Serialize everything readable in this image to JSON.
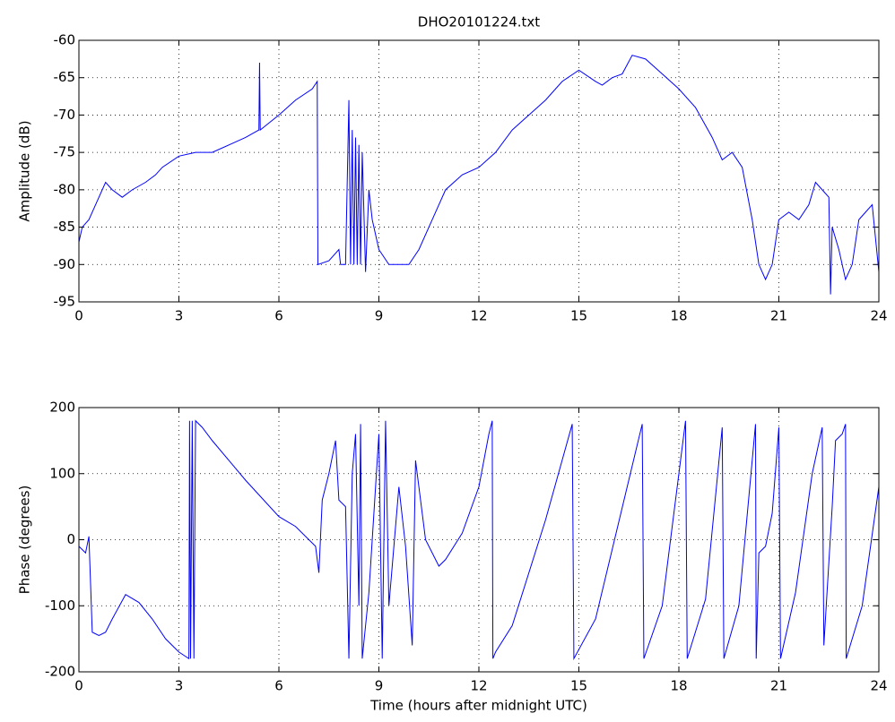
{
  "chart_data": [
    {
      "type": "line",
      "title": "DHO20101224.txt",
      "y_label": "Amplitude (dB)",
      "grid": true,
      "xlim": [
        0,
        24
      ],
      "xticks": [
        0,
        3,
        6,
        9,
        12,
        15,
        18,
        21,
        24
      ],
      "ylim": [
        -95,
        -60
      ],
      "yticks": [
        -95,
        -90,
        -85,
        -80,
        -75,
        -70,
        -65,
        -60
      ],
      "x": [
        0,
        0.1,
        0.3,
        0.5,
        0.8,
        1.0,
        1.3,
        1.6,
        2.0,
        2.3,
        2.5,
        3.0,
        3.5,
        4.0,
        4.5,
        5.0,
        5.4,
        5.42,
        5.44,
        6.0,
        6.5,
        7.0,
        7.15,
        7.17,
        7.5,
        7.8,
        7.85,
        8.0,
        8.1,
        8.15,
        8.2,
        8.25,
        8.3,
        8.35,
        8.4,
        8.45,
        8.5,
        8.6,
        8.7,
        8.8,
        9.0,
        9.3,
        9.6,
        9.9,
        10.2,
        10.5,
        10.8,
        11.0,
        11.5,
        12.0,
        12.5,
        13.0,
        13.5,
        14.0,
        14.5,
        15.0,
        15.5,
        15.7,
        16.0,
        16.3,
        16.6,
        17.0,
        17.5,
        18.0,
        18.5,
        19.0,
        19.3,
        19.6,
        19.9,
        20.2,
        20.4,
        20.6,
        20.8,
        21.0,
        21.3,
        21.6,
        21.9,
        22.1,
        22.3,
        22.5,
        22.55,
        22.6,
        22.8,
        23.0,
        23.2,
        23.4,
        23.6,
        23.8,
        24
      ],
      "series": [
        {
          "color": "#0000ff",
          "values": [
            -87,
            -85,
            -84,
            -82,
            -79,
            -80,
            -81,
            -80,
            -79,
            -78,
            -77,
            -75.5,
            -75,
            -75,
            -74,
            -73,
            -72,
            -63,
            -72,
            -70,
            -68,
            -66.5,
            -65.5,
            -90,
            -89.5,
            -88,
            -90,
            -90,
            -68,
            -90,
            -72,
            -90,
            -73,
            -90,
            -74,
            -90,
            -75,
            -91,
            -80,
            -84,
            -88,
            -90,
            -90,
            -90,
            -88,
            -85,
            -82,
            -80,
            -78,
            -77,
            -75,
            -72,
            -70,
            -68,
            -65.5,
            -64,
            -65.5,
            -66,
            -65,
            -64.5,
            -62,
            -62.5,
            -64.5,
            -66.5,
            -69,
            -73,
            -76,
            -75,
            -77,
            -84,
            -90,
            -92,
            -90,
            -84,
            -83,
            -84,
            -82,
            -79,
            -80,
            -81,
            -94,
            -85,
            -88,
            -92,
            -90,
            -84,
            -83,
            -82,
            -91
          ]
        }
      ]
    },
    {
      "type": "line",
      "x_label": "Time (hours after midnight UTC)",
      "y_label": "Phase (degrees)",
      "grid": true,
      "xlim": [
        0,
        24
      ],
      "xticks": [
        0,
        3,
        6,
        9,
        12,
        15,
        18,
        21,
        24
      ],
      "ylim": [
        -200,
        200
      ],
      "yticks": [
        -200,
        -100,
        0,
        100,
        200
      ],
      "x": [
        0,
        0.2,
        0.3,
        0.4,
        0.6,
        0.8,
        1.0,
        1.4,
        1.8,
        2.2,
        2.6,
        3.0,
        3.3,
        3.32,
        3.35,
        3.4,
        3.45,
        3.5,
        3.7,
        4.0,
        5.0,
        6.0,
        6.5,
        7.1,
        7.2,
        7.3,
        7.5,
        7.7,
        7.8,
        8.0,
        8.1,
        8.2,
        8.3,
        8.4,
        8.45,
        8.5,
        8.7,
        9.0,
        9.1,
        9.2,
        9.3,
        9.6,
        9.8,
        10.0,
        10.1,
        10.4,
        10.8,
        11.0,
        11.5,
        12.0,
        12.3,
        12.4,
        12.42,
        12.5,
        13.0,
        14.0,
        14.8,
        14.85,
        15.5,
        16.9,
        16.95,
        17.5,
        18.2,
        18.25,
        18.8,
        19.3,
        19.35,
        19.8,
        20.3,
        20.32,
        20.4,
        20.6,
        20.8,
        21.0,
        21.05,
        21.5,
        22.0,
        22.3,
        22.35,
        22.6,
        22.7,
        22.9,
        23.0,
        23.02,
        23.5,
        24
      ],
      "series": [
        {
          "color": "#0000ff",
          "values": [
            -10,
            -20,
            5,
            -140,
            -145,
            -140,
            -120,
            -83,
            -95,
            -120,
            -150,
            -170,
            -180,
            180,
            -180,
            180,
            -180,
            180,
            170,
            150,
            90,
            35,
            20,
            -10,
            -50,
            60,
            100,
            150,
            60,
            50,
            -180,
            100,
            160,
            -100,
            175,
            -180,
            -80,
            160,
            -180,
            180,
            -100,
            80,
            -10,
            -160,
            120,
            0,
            -40,
            -30,
            10,
            80,
            160,
            180,
            -180,
            -170,
            -130,
            30,
            175,
            -180,
            -120,
            175,
            -180,
            -100,
            180,
            -180,
            -90,
            170,
            -180,
            -100,
            175,
            -180,
            -20,
            -10,
            40,
            170,
            -180,
            -80,
            100,
            170,
            -160,
            50,
            150,
            160,
            175,
            -180,
            -100,
            80
          ]
        }
      ]
    }
  ]
}
